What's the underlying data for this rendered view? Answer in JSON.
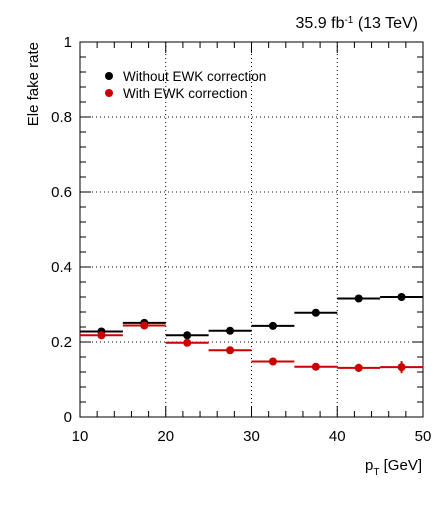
{
  "chart_data": {
    "type": "scatter",
    "title": "35.9 fb⁻¹ (13 TeV)",
    "title_parts": {
      "base": "35.9 fb",
      "sup": "-1",
      "rest": " (13 TeV)"
    },
    "ylabel": "Ele fake rate",
    "xlabel": {
      "main": "p",
      "sub": "T",
      "rest": " [GeV]"
    },
    "xlim": [
      10,
      50
    ],
    "ylim": [
      0,
      1
    ],
    "xticks": [
      10,
      20,
      30,
      40,
      50
    ],
    "yticks": [
      0,
      0.2,
      0.4,
      0.6,
      0.8,
      1
    ],
    "ytick_labels": [
      "0",
      "0.2",
      "0.4",
      "0.6",
      "0.8",
      "1"
    ],
    "grid": true,
    "legend_position": "top-left",
    "bins": [
      [
        10,
        15
      ],
      [
        15,
        20
      ],
      [
        20,
        25
      ],
      [
        25,
        30
      ],
      [
        30,
        35
      ],
      [
        35,
        40
      ],
      [
        40,
        45
      ],
      [
        45,
        50
      ]
    ],
    "series": [
      {
        "name": "Without EWK correction",
        "color": "#000000",
        "x": [
          12.5,
          17.5,
          22.5,
          27.5,
          32.5,
          37.5,
          42.5,
          47.5
        ],
        "y": [
          0.228,
          0.251,
          0.218,
          0.23,
          0.243,
          0.278,
          0.316,
          0.32
        ],
        "yerr": [
          0.008,
          0.007,
          0.006,
          0.006,
          0.006,
          0.007,
          0.008,
          0.01
        ]
      },
      {
        "name": "With EWK correction",
        "color": "#cc0000",
        "x": [
          12.5,
          17.5,
          22.5,
          27.5,
          32.5,
          37.5,
          42.5,
          47.5
        ],
        "y": [
          0.218,
          0.244,
          0.198,
          0.178,
          0.148,
          0.134,
          0.131,
          0.133
        ],
        "yerr": [
          0.008,
          0.008,
          0.006,
          0.006,
          0.007,
          0.009,
          0.011,
          0.016
        ]
      }
    ]
  }
}
